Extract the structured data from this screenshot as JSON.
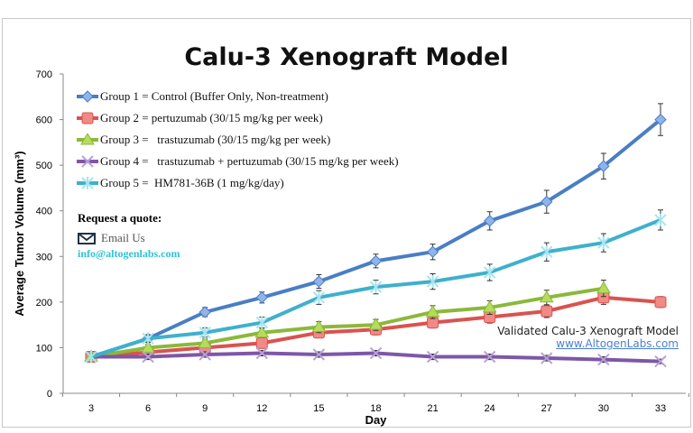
{
  "chart_data": {
    "type": "line",
    "title": "Calu-3 Xenograft Model",
    "xlabel": "Day",
    "ylabel": "Average Tumor Volume (mm³)",
    "x": [
      3,
      6,
      9,
      12,
      15,
      18,
      21,
      24,
      27,
      30,
      33
    ],
    "ylim": [
      0,
      700
    ],
    "yticks": [
      0,
      100,
      200,
      300,
      400,
      500,
      600,
      700
    ],
    "grid": false,
    "legend_placement": "top-left",
    "series": [
      {
        "name": "Group 1 = Control (Buffer Only, Non-treatment)",
        "color": "#4a7ec4",
        "marker": "diamond",
        "values": [
          80,
          120,
          178,
          210,
          245,
          290,
          310,
          378,
          420,
          498,
          600
        ],
        "errors": [
          5,
          8,
          10,
          12,
          15,
          15,
          17,
          20,
          25,
          28,
          35
        ]
      },
      {
        "name": "Group 2 = pertuzumab (30/15 mg/kg per week)",
        "color": "#d9534f",
        "marker": "square",
        "values": [
          80,
          90,
          100,
          110,
          133,
          140,
          155,
          167,
          180,
          210,
          200
        ],
        "errors": [
          5,
          6,
          8,
          10,
          10,
          12,
          12,
          13,
          14,
          15,
          12
        ]
      },
      {
        "name": "Group 3 =   trastuzumab (30/15 mg/kg per week)",
        "color": "#8bb83a",
        "marker": "triangle",
        "values": [
          80,
          100,
          110,
          133,
          145,
          150,
          178,
          188,
          210,
          230,
          null
        ],
        "errors": [
          5,
          7,
          9,
          10,
          12,
          12,
          14,
          15,
          16,
          18,
          null
        ]
      },
      {
        "name": "Group 4 =   trastuzumab + pertuzumab (30/15 mg/kg per week)",
        "color": "#7e57a8",
        "marker": "x",
        "values": [
          80,
          80,
          85,
          88,
          85,
          88,
          80,
          80,
          77,
          74,
          70
        ],
        "errors": [
          4,
          6,
          6,
          6,
          6,
          6,
          6,
          6,
          6,
          6,
          5
        ]
      },
      {
        "name": "Group 5 =  HM781-36B (1 mg/kg/day)",
        "color": "#3fb0cc",
        "marker": "star",
        "values": [
          80,
          120,
          133,
          155,
          210,
          233,
          245,
          265,
          310,
          330,
          380
        ],
        "errors": [
          5,
          8,
          10,
          12,
          15,
          15,
          17,
          18,
          20,
          20,
          22
        ]
      }
    ]
  },
  "annotations": {
    "quote": "Request a quote:",
    "email_label": "Email Us",
    "email": "info@altogenlabs.com",
    "validated": "Validated Calu-3 Xenograft Model",
    "url": "www.AltogenLabs.com"
  }
}
